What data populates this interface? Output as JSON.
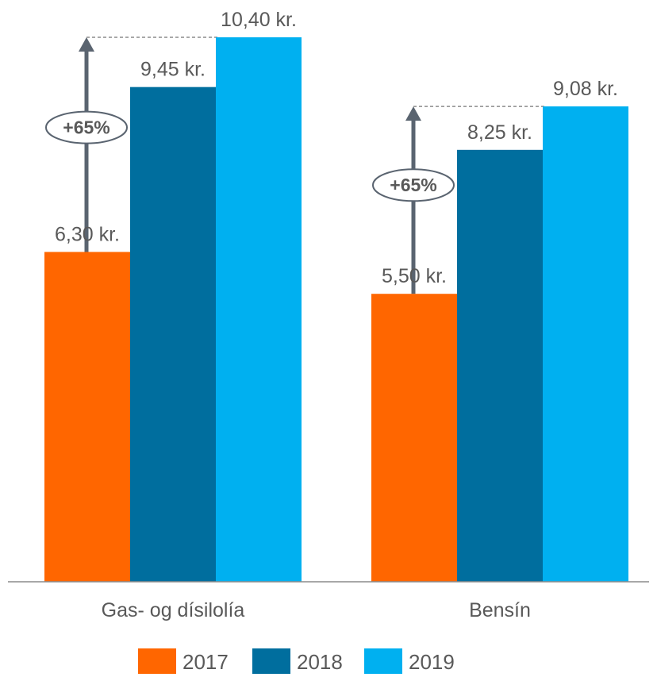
{
  "chart_data": {
    "type": "bar",
    "categories": [
      "Gas- og dísilolía",
      "Bensín"
    ],
    "series": [
      {
        "name": "2017",
        "values": [
          6.3,
          5.5
        ],
        "labels": [
          "6,30 kr.",
          "5,50 kr."
        ]
      },
      {
        "name": "2018",
        "values": [
          9.45,
          8.25
        ],
        "labels": [
          "9,45 kr.",
          "8,25 kr."
        ]
      },
      {
        "name": "2019",
        "values": [
          10.4,
          9.08
        ],
        "labels": [
          "10,40 kr.",
          "9,08 kr."
        ]
      }
    ],
    "colors": [
      "#ff6600",
      "#006e9e",
      "#00b0f0"
    ],
    "ylim": [
      0,
      11.1
    ],
    "grid": false,
    "legend_position": "bottom",
    "annotations": [
      {
        "category": "Gas- og dísilolía",
        "text": "+65%"
      },
      {
        "category": "Bensín",
        "text": "+65%"
      }
    ],
    "title": "",
    "xlabel": "",
    "ylabel": ""
  }
}
